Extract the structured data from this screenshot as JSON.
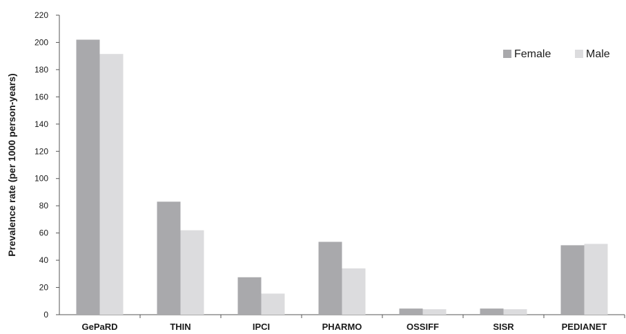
{
  "chart_data": {
    "type": "bar",
    "title": "",
    "xlabel": "",
    "ylabel": "Prevalence rate (per 1000 person-years)",
    "ylim": [
      0,
      220
    ],
    "yticks": [
      0,
      20,
      40,
      60,
      80,
      100,
      120,
      140,
      160,
      180,
      200,
      220
    ],
    "grid": false,
    "legend_position": "top-right",
    "categories": [
      "GePaRD",
      "THIN",
      "IPCI",
      "PHARMO",
      "OSSIFF",
      "SISR",
      "PEDIANET"
    ],
    "series": [
      {
        "name": "Female",
        "color": "#a9a9ac",
        "values": [
          202,
          83,
          27.5,
          53.5,
          4.5,
          4.5,
          51
        ]
      },
      {
        "name": "Male",
        "color": "#dcdcde",
        "values": [
          191.5,
          62,
          15.5,
          34,
          4,
          4,
          52
        ]
      }
    ]
  }
}
